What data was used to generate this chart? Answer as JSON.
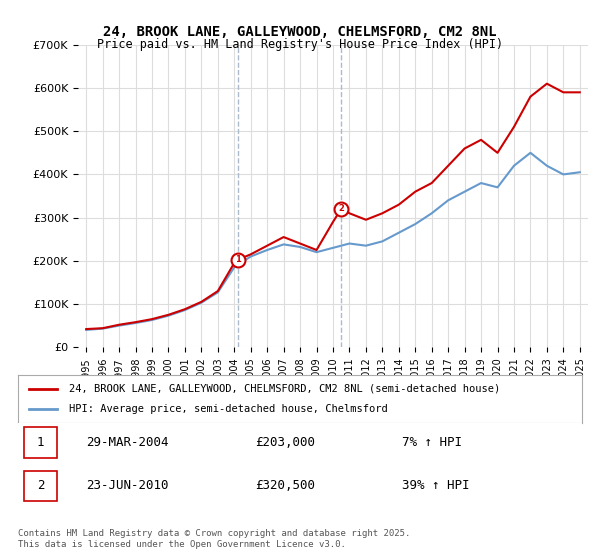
{
  "title_line1": "24, BROOK LANE, GALLEYWOOD, CHELMSFORD, CM2 8NL",
  "title_line2": "Price paid vs. HM Land Registry's House Price Index (HPI)",
  "legend_label_red": "24, BROOK LANE, GALLEYWOOD, CHELMSFORD, CM2 8NL (semi-detached house)",
  "legend_label_blue": "HPI: Average price, semi-detached house, Chelmsford",
  "footer": "Contains HM Land Registry data © Crown copyright and database right 2025.\nThis data is licensed under the Open Government Licence v3.0.",
  "sale1_label": "1",
  "sale1_date": "29-MAR-2004",
  "sale1_price": "£203,000",
  "sale1_hpi": "7% ↑ HPI",
  "sale2_label": "2",
  "sale2_date": "23-JUN-2010",
  "sale2_price": "£320,500",
  "sale2_hpi": "39% ↑ HPI",
  "sale1_year": 2004.25,
  "sale1_value": 203000,
  "sale2_year": 2010.5,
  "sale2_value": 320500,
  "color_red": "#cc0000",
  "color_blue": "#6699cc",
  "color_marker_border": "#cc0000",
  "ylim": [
    0,
    700000
  ],
  "xlim_start": 1995,
  "xlim_end": 2025.5,
  "background_color": "#ffffff",
  "grid_color": "#dddddd",
  "vline_color": "#aabbcc",
  "vline1_x": 2004.25,
  "vline2_x": 2010.5,
  "red_years": [
    1995,
    1996,
    1997,
    1998,
    1999,
    2000,
    2001,
    2002,
    2003,
    2004,
    2004.25,
    2005,
    2006,
    2007,
    2008,
    2009,
    2010,
    2010.5,
    2011,
    2012,
    2013,
    2014,
    2015,
    2016,
    2017,
    2018,
    2019,
    2020,
    2021,
    2022,
    2023,
    2024,
    2025
  ],
  "red_values": [
    42000,
    44000,
    52000,
    58000,
    65000,
    75000,
    88000,
    105000,
    130000,
    195000,
    203000,
    215000,
    235000,
    255000,
    240000,
    225000,
    290000,
    320500,
    310000,
    295000,
    310000,
    330000,
    360000,
    380000,
    420000,
    460000,
    480000,
    450000,
    510000,
    580000,
    610000,
    590000,
    590000
  ],
  "blue_years": [
    1995,
    1996,
    1997,
    1998,
    1999,
    2000,
    2001,
    2002,
    2003,
    2004,
    2005,
    2006,
    2007,
    2008,
    2009,
    2010,
    2011,
    2012,
    2013,
    2014,
    2015,
    2016,
    2017,
    2018,
    2019,
    2020,
    2021,
    2022,
    2023,
    2024,
    2025
  ],
  "blue_values": [
    40000,
    43000,
    50000,
    56000,
    63000,
    73000,
    86000,
    103000,
    127000,
    185000,
    210000,
    225000,
    238000,
    232000,
    220000,
    230000,
    240000,
    235000,
    245000,
    265000,
    285000,
    310000,
    340000,
    360000,
    380000,
    370000,
    420000,
    450000,
    420000,
    400000,
    405000
  ]
}
